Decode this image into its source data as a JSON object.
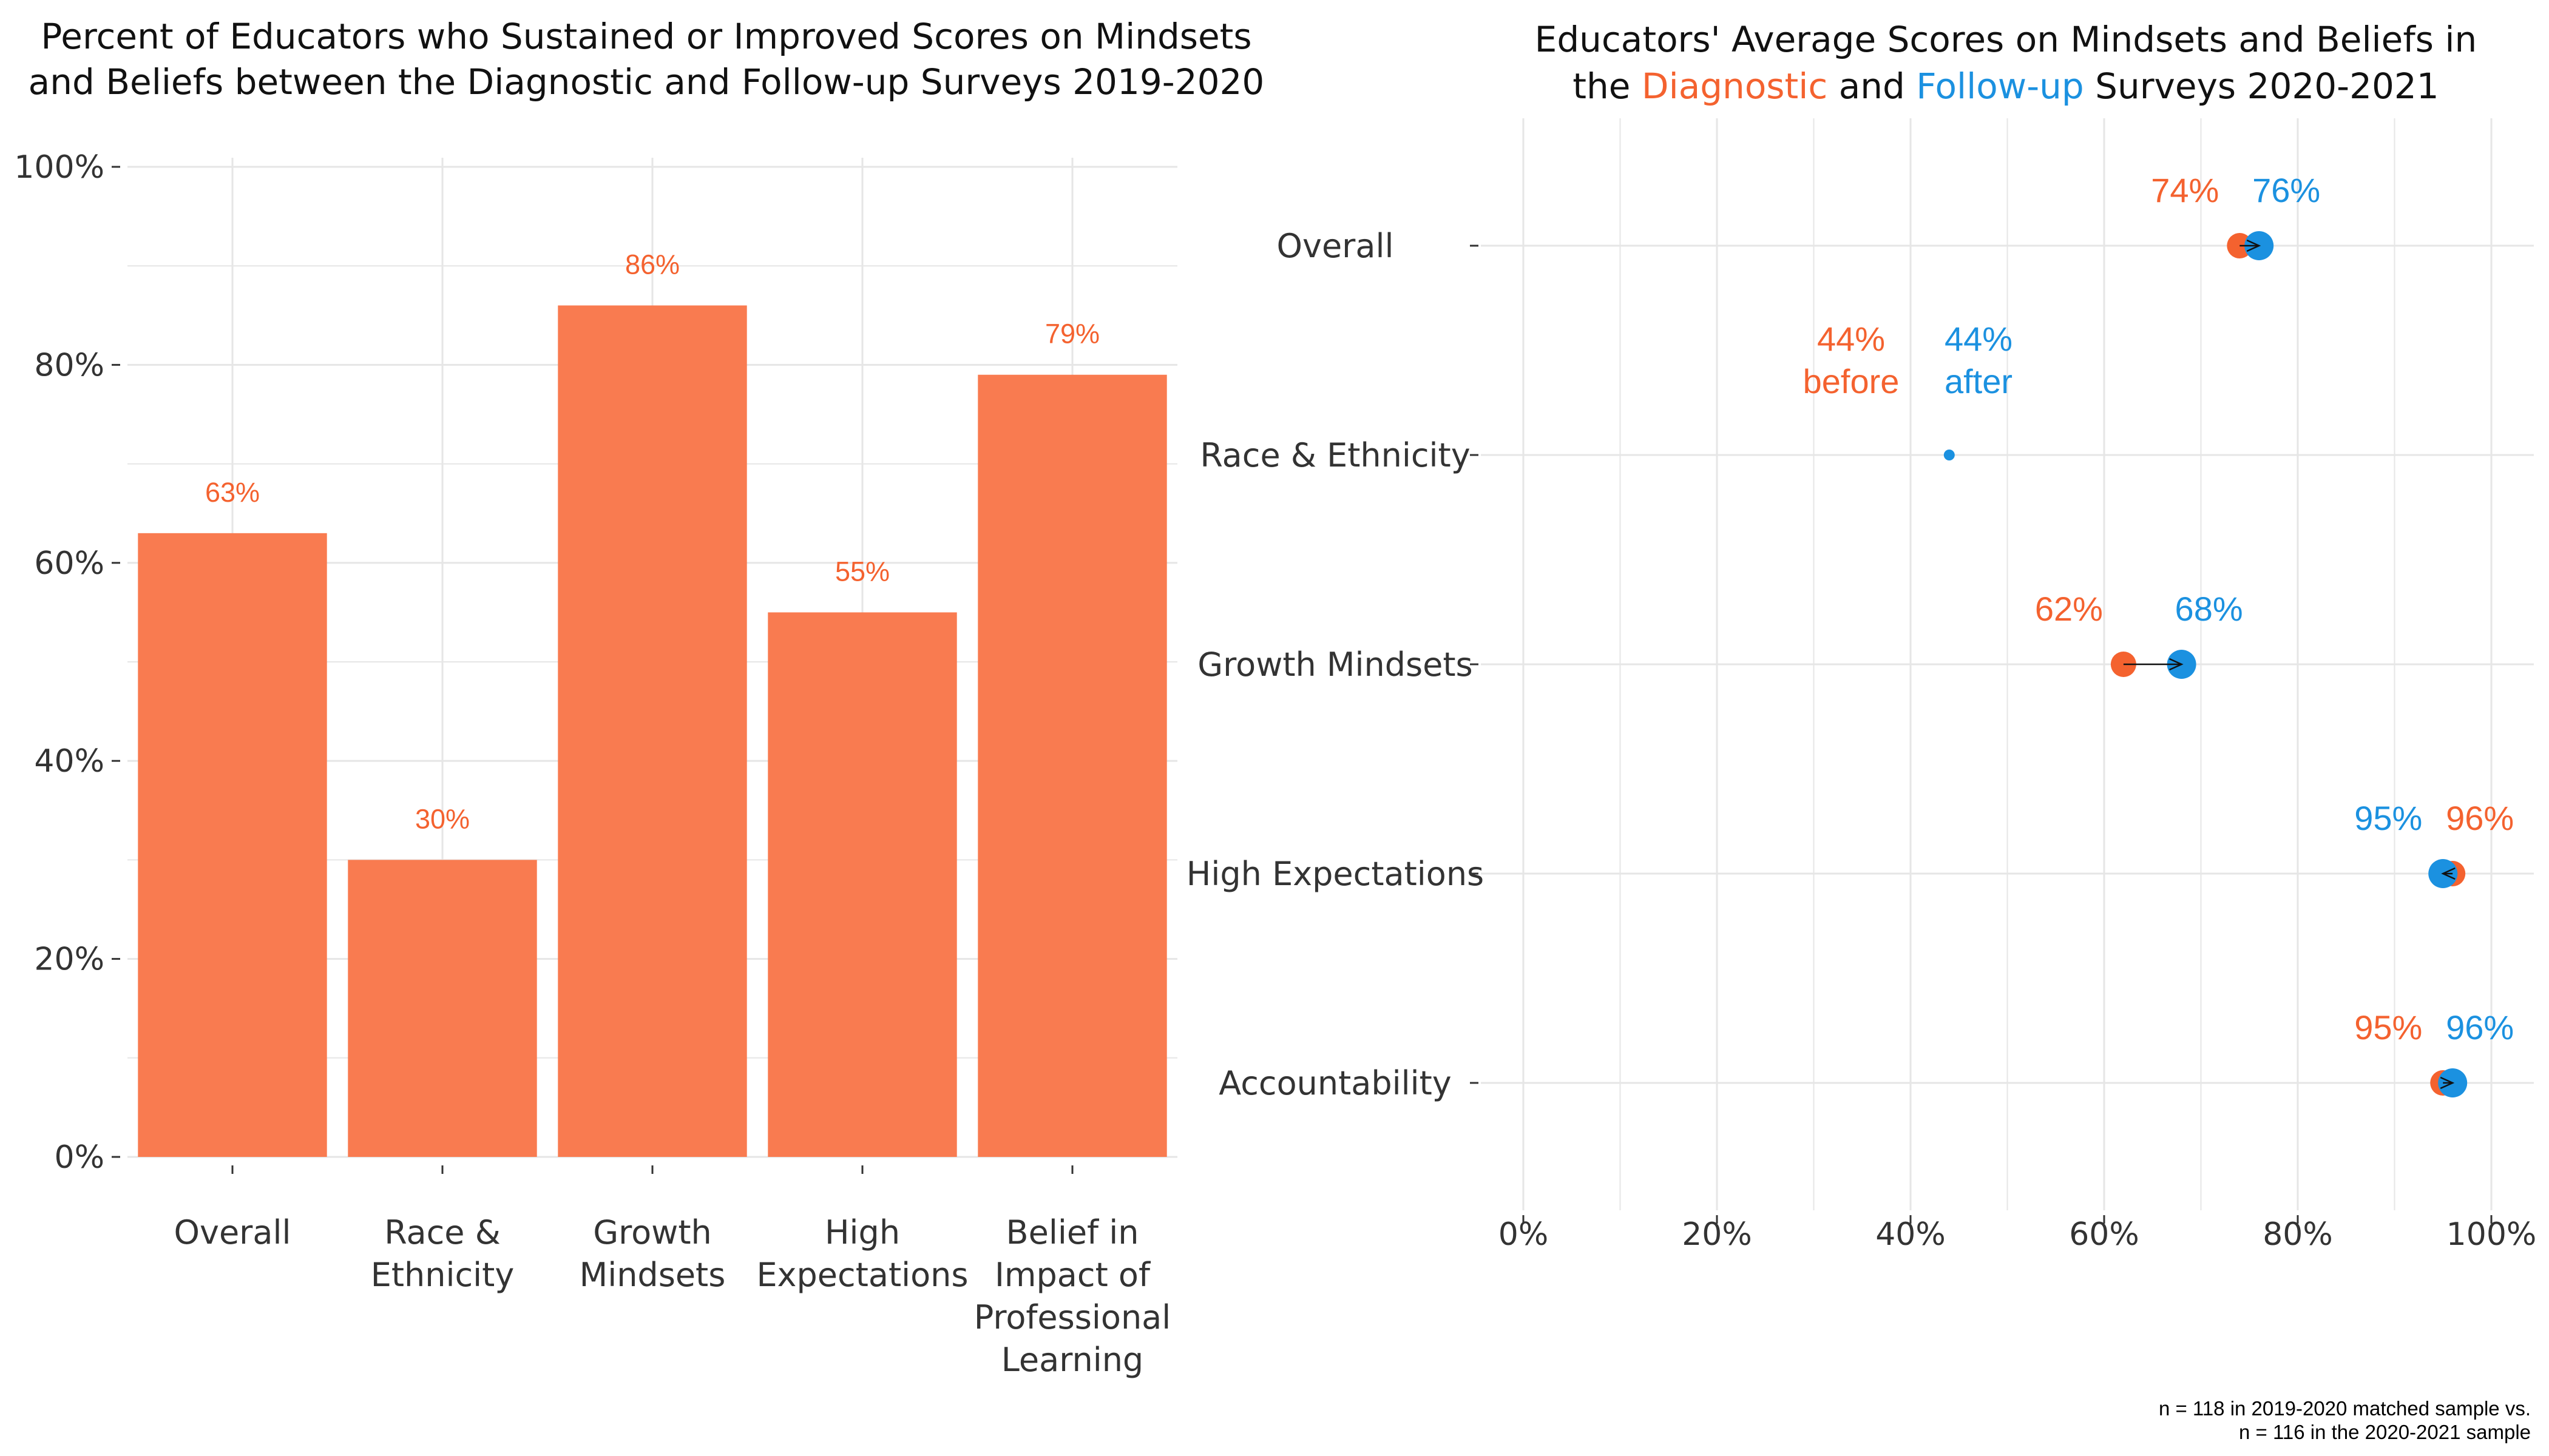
{
  "colors": {
    "orange": "#F4622F",
    "bar": "#F97B50",
    "blue": "#1B91E0",
    "grid": "#E6E6E6",
    "arrow": "#111111"
  },
  "chart_data": [
    {
      "type": "bar",
      "title_lines": [
        "Percent of Educators who Sustained or Improved Scores on Mindsets",
        "and Beliefs between the Diagnostic and Follow-up Surveys 2019-2020"
      ],
      "categories": [
        [
          "Overall"
        ],
        [
          "Race &",
          "Ethnicity"
        ],
        [
          "Growth",
          "Mindsets"
        ],
        [
          "High",
          "Expectations"
        ],
        [
          "Belief in",
          "Impact of",
          "Professional",
          "Learning"
        ]
      ],
      "values": [
        63,
        30,
        86,
        55,
        79
      ],
      "value_labels": [
        "63%",
        "30%",
        "86%",
        "55%",
        "79%"
      ],
      "ylim": [
        0,
        100
      ],
      "yticks": [
        0,
        20,
        40,
        60,
        80,
        100
      ],
      "ytick_labels": [
        "0%",
        "20%",
        "40%",
        "60%",
        "80%",
        "100%"
      ],
      "grid": true,
      "legend": "none"
    },
    {
      "type": "scatter",
      "title_line1": "Educators' Average Scores on Mindsets and Beliefs in",
      "title_line2": {
        "pre": "the ",
        "diag": "Diagnostic",
        "mid": " and ",
        "follow": "Follow-up",
        "post": " Surveys 2020-2021"
      },
      "categories": [
        "Overall",
        "Race & Ethnicity",
        "Growth Mindsets",
        "High Expectations",
        "Accountability"
      ],
      "diagnostic": [
        74,
        44,
        62,
        96,
        95
      ],
      "followup": [
        76,
        44,
        68,
        95,
        96
      ],
      "diagnostic_labels": [
        [
          "74%"
        ],
        [
          "44%",
          "before"
        ],
        [
          "62%"
        ],
        [
          "96%"
        ],
        [
          "95%"
        ]
      ],
      "followup_labels": [
        [
          "76%"
        ],
        [
          "44%",
          "after"
        ],
        [
          "68%"
        ],
        [
          "95%"
        ],
        [
          "96%"
        ]
      ],
      "xlim": [
        0,
        100
      ],
      "xticks": [
        0,
        20,
        40,
        60,
        80,
        100
      ],
      "xtick_labels": [
        "0%",
        "20%",
        "40%",
        "60%",
        "80%",
        "100%"
      ],
      "grid": true,
      "legend": "none"
    }
  ],
  "footnote": [
    "n = 118 in 2019-2020 matched sample vs.",
    "n = 116 in the 2020-2021 sample"
  ]
}
